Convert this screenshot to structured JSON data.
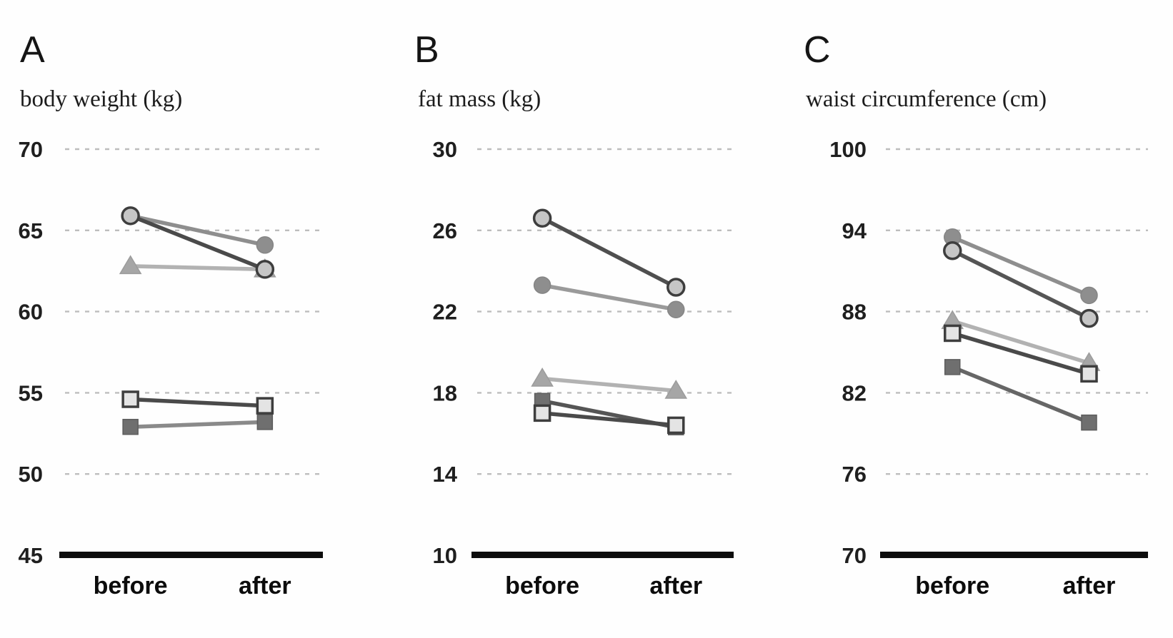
{
  "figure_description": "Three-panel before/after paired line charts for five subjects",
  "categories": [
    "before",
    "after"
  ],
  "styles": {
    "background": "#fefefe",
    "gridline_color": "#bdbdbd",
    "axis_color": "#0d0d0d",
    "text_color": "#1f1f1f",
    "markers": {
      "open-circle": {
        "fill": "#c6c6c6",
        "stroke": "#3e3e3e",
        "stroke_width": 3.5
      },
      "filled-circle": {
        "fill": "#8e8e8e",
        "stroke": "#858585",
        "stroke_width": 1.5
      },
      "filled-triangle": {
        "fill": "#a6a6a6",
        "stroke": "#9c9c9c",
        "stroke_width": 1.5
      },
      "open-square": {
        "fill": "#e4e4e4",
        "stroke": "#3e3e3e",
        "stroke_width": 3.5
      },
      "filled-square": {
        "fill": "#6f6f6f",
        "stroke": "#5c5c5c",
        "stroke_width": 1.5
      }
    }
  },
  "chart_data": [
    {
      "type": "line",
      "panel_label": "A",
      "title": "body weight (kg)",
      "categories": [
        "before",
        "after"
      ],
      "ylim": [
        45,
        70
      ],
      "yticks": [
        70,
        65,
        60,
        55,
        50,
        45
      ],
      "grid": "dashed-horizontal",
      "legend": "none",
      "series": [
        {
          "name": "open-circle",
          "marker": "open-circle",
          "line_color": "#4a4a4a",
          "values": [
            65.9,
            62.6
          ]
        },
        {
          "name": "filled-circle",
          "marker": "filled-circle",
          "line_color": "#8e8e8e",
          "values": [
            65.9,
            64.1
          ]
        },
        {
          "name": "triangle",
          "marker": "filled-triangle",
          "line_color": "#b2b2b2",
          "values": [
            62.8,
            62.6
          ]
        },
        {
          "name": "open-square",
          "marker": "open-square",
          "line_color": "#4a4a4a",
          "values": [
            54.6,
            54.2
          ]
        },
        {
          "name": "filled-square",
          "marker": "filled-square",
          "line_color": "#8a8a8a",
          "values": [
            52.9,
            53.2
          ]
        }
      ]
    },
    {
      "type": "line",
      "panel_label": "B",
      "title": "fat mass (kg)",
      "categories": [
        "before",
        "after"
      ],
      "ylim": [
        10,
        30
      ],
      "yticks": [
        30,
        26,
        22,
        18,
        14,
        10
      ],
      "grid": "dashed-horizontal",
      "legend": "none",
      "series": [
        {
          "name": "open-circle",
          "marker": "open-circle",
          "line_color": "#4f4f4f",
          "values": [
            26.6,
            23.2
          ]
        },
        {
          "name": "filled-circle",
          "marker": "filled-circle",
          "line_color": "#9a9a9a",
          "values": [
            23.3,
            22.1
          ]
        },
        {
          "name": "triangle",
          "marker": "filled-triangle",
          "line_color": "#b2b2b2",
          "values": [
            18.7,
            18.1
          ]
        },
        {
          "name": "open-square",
          "marker": "open-square",
          "line_color": "#4a4a4a",
          "values": [
            17.0,
            16.4
          ]
        },
        {
          "name": "filled-square",
          "marker": "filled-square",
          "line_color": "#555555",
          "values": [
            17.6,
            16.3
          ]
        }
      ]
    },
    {
      "type": "line",
      "panel_label": "C",
      "title": "waist circumference (cm)",
      "categories": [
        "before",
        "after"
      ],
      "ylim": [
        70,
        100
      ],
      "yticks": [
        100,
        94,
        88,
        82,
        76,
        70
      ],
      "grid": "dashed-horizontal",
      "legend": "none",
      "series": [
        {
          "name": "filled-circle",
          "marker": "filled-circle",
          "line_color": "#8e8e8e",
          "values": [
            93.5,
            89.2
          ]
        },
        {
          "name": "open-circle",
          "marker": "open-circle",
          "line_color": "#555555",
          "values": [
            92.5,
            87.5
          ]
        },
        {
          "name": "triangle",
          "marker": "filled-triangle",
          "line_color": "#b2b2b2",
          "values": [
            87.3,
            84.2
          ]
        },
        {
          "name": "open-square",
          "marker": "open-square",
          "line_color": "#4a4a4a",
          "values": [
            86.4,
            83.4
          ]
        },
        {
          "name": "filled-square",
          "marker": "filled-square",
          "line_color": "#666666",
          "values": [
            83.9,
            79.8
          ]
        }
      ]
    }
  ]
}
